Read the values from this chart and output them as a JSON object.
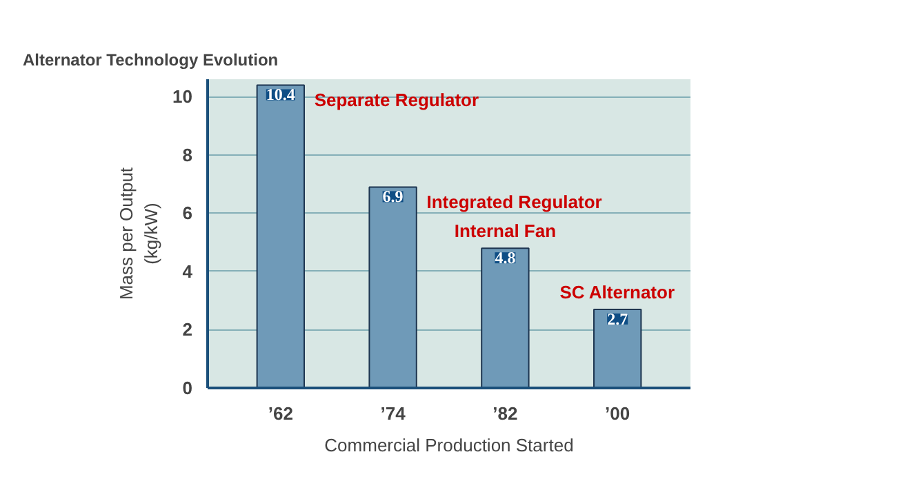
{
  "chart_data": {
    "type": "bar",
    "title": "Alternator Technology Evolution",
    "xlabel": "Commercial Production Started",
    "ylabel": "Mass per Output\n(kg/kW)",
    "categories": [
      "’62",
      "’74",
      "’82",
      "’00"
    ],
    "values": [
      10.4,
      6.9,
      4.8,
      2.7
    ],
    "color": "#6f9ab8",
    "data_labels": true,
    "ylim": [
      0,
      10.6
    ],
    "yticks": [
      0,
      2,
      4,
      6,
      8,
      10
    ],
    "grid": "y",
    "annotations": [
      "Separate Regulator",
      "Integrated Regulator",
      "Internal Fan",
      "SC Alternator"
    ]
  }
}
